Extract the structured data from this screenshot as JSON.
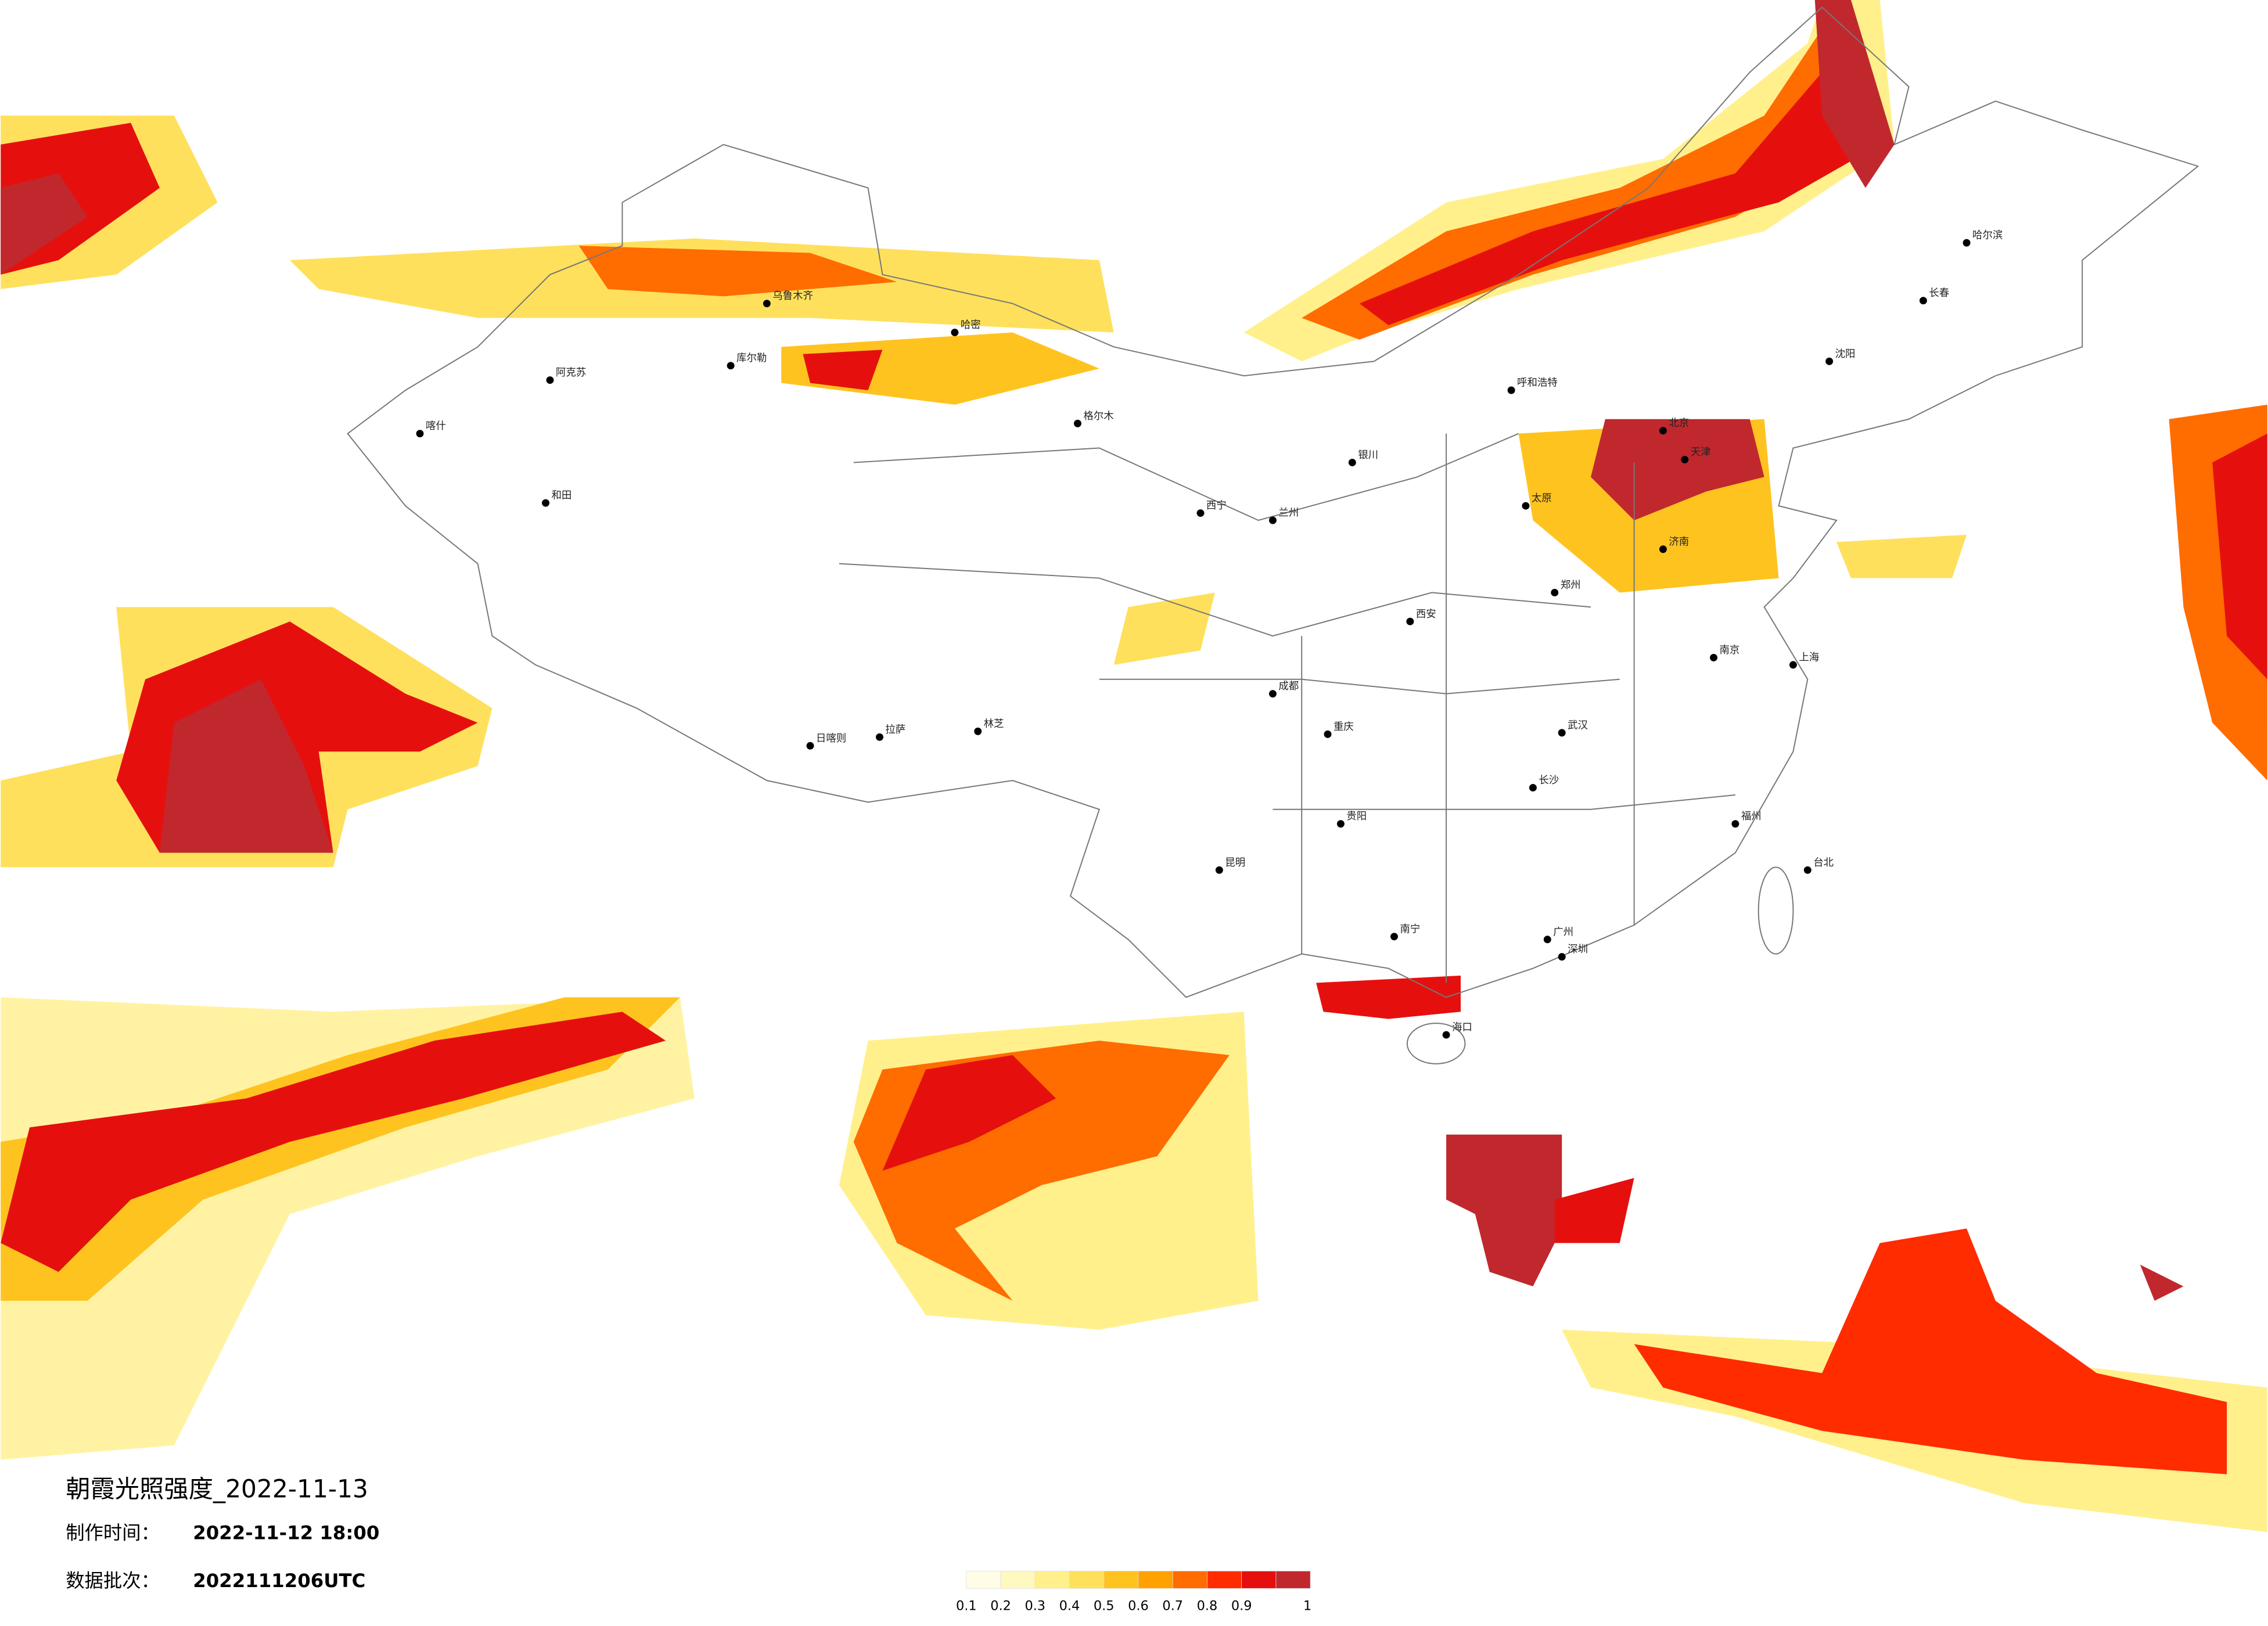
{
  "title": "朝霞光照强度_2022-11-13",
  "made_time_label": "制作时间：",
  "made_time": "2022-11-12 18:00",
  "batch_label": "数据批次：",
  "batch": "2022111206UTC",
  "colorbar": {
    "ticks": [
      0.1,
      0.2,
      0.3,
      0.4,
      0.5,
      0.6,
      0.7,
      0.8,
      0.9,
      1
    ],
    "colors": [
      "#fffde6",
      "#fff8bf",
      "#fff08c",
      "#ffe05c",
      "#ffc31f",
      "#ffa200",
      "#ff6c00",
      "#ff2c00",
      "#e5100e",
      "#c0282e"
    ]
  },
  "cities": [
    "阿克苏",
    "和田",
    "喀什",
    "库尔勒",
    "哈密",
    "乌鲁木齐",
    "格尔木",
    "拉萨",
    "日喀则",
    "林芝",
    "昆明",
    "成都",
    "重庆",
    "贵阳",
    "南宁",
    "广州",
    "深圳",
    "福州",
    "台北",
    "上海",
    "南京",
    "武汉",
    "长沙",
    "西安",
    "兰州",
    "西宁",
    "银川",
    "呼和浩特",
    "北京",
    "天津",
    "济南",
    "郑州",
    "太原",
    "沈阳",
    "长春",
    "哈尔滨",
    "海口"
  ]
}
